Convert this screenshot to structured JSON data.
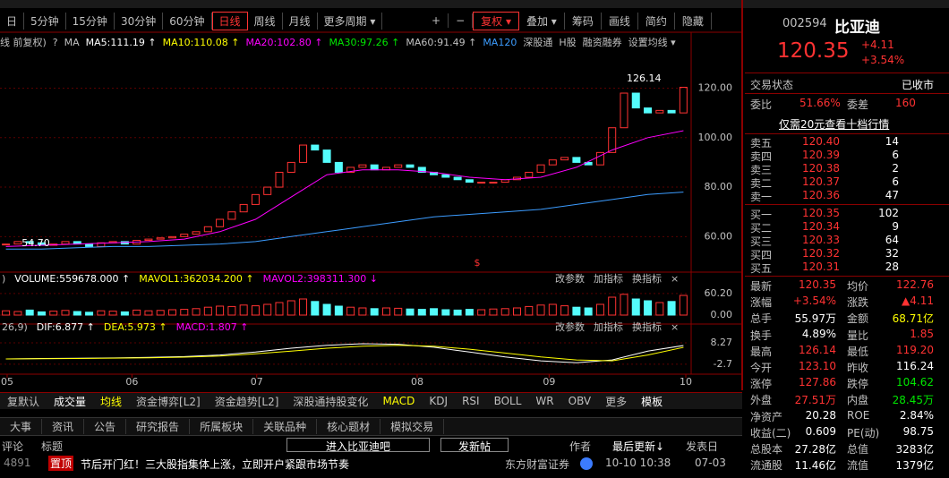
{
  "toolbar": {
    "periods": [
      "日",
      "5分钟",
      "15分钟",
      "30分钟",
      "60分钟",
      "日线",
      "周线",
      "月线",
      "更多周期 ▾"
    ],
    "tools": [
      "+",
      "−",
      "复权 ▾",
      "叠加 ▾",
      "筹码",
      "画线",
      "简约",
      "隐藏"
    ],
    "active": [
      "日线",
      "复权 ▾"
    ]
  },
  "ma_bar": [
    {
      "text": "线 前复权)",
      "color": "#c0c0c0"
    },
    {
      "text": "?",
      "color": "#c0c0c0"
    },
    {
      "text": "MA",
      "color": "#c0c0c0"
    },
    {
      "text": "MA5:111.19 ↑",
      "color": "#ffffff"
    },
    {
      "text": "MA10:110.08 ↑",
      "color": "#ffff00"
    },
    {
      "text": "MA20:102.80 ↑",
      "color": "#ff00ff"
    },
    {
      "text": "MA30:97.26 ↑",
      "color": "#00e600"
    },
    {
      "text": "MA60:91.49 ↑",
      "color": "#c0c0c0"
    },
    {
      "text": "MA120",
      "color": "#3c9cff"
    },
    {
      "text": "深股通",
      "color": "#c0c0c0"
    },
    {
      "text": "H股",
      "color": "#c0c0c0"
    },
    {
      "text": "融资融券",
      "color": "#c0c0c0"
    },
    {
      "text": "设置均线 ▾",
      "color": "#c0c0c0"
    }
  ],
  "chart_data": [
    {
      "type": "candlestick",
      "values": [
        57,
        58,
        57.5,
        56.5,
        57,
        58,
        57,
        56,
        57.5,
        58,
        57,
        58.5,
        59,
        59.5,
        60,
        61,
        62,
        64,
        67,
        70,
        73,
        77,
        80,
        86,
        90,
        97,
        95,
        90,
        86,
        88,
        89,
        87,
        88,
        89,
        88,
        86,
        85,
        84,
        83,
        82,
        82,
        82,
        83,
        84,
        86,
        89,
        91,
        92,
        90,
        89,
        94,
        104,
        118,
        112,
        110,
        111,
        110,
        120.35
      ],
      "xlim": [
        -0.5,
        57.5
      ],
      "ylim": [
        47.1,
        133.2
      ],
      "yticks": [
        {
          "value": 60,
          "label": "60.00"
        },
        {
          "value": 80,
          "label": "80.00"
        },
        {
          "value": 100,
          "label": "100.00"
        },
        {
          "value": 120,
          "label": "120.00"
        }
      ],
      "series": [
        {
          "color": "#ff00ff",
          "x": [
            0,
            3,
            6,
            9,
            12,
            15,
            18,
            21,
            24,
            27,
            30,
            33,
            36,
            39,
            42,
            45,
            48,
            51,
            54,
            57
          ],
          "values": [
            56,
            56.5,
            57,
            57.5,
            58,
            59,
            62,
            67,
            76,
            85,
            87,
            87,
            86,
            84,
            83,
            84,
            88,
            95,
            100,
            102.8
          ]
        },
        {
          "color": "#3c9cff",
          "x": [
            0,
            3,
            6,
            9,
            12,
            15,
            18,
            21,
            24,
            27,
            30,
            33,
            36,
            39,
            42,
            45,
            48,
            51,
            54,
            57
          ],
          "values": [
            55,
            55,
            55.5,
            56,
            56,
            56.5,
            57,
            58,
            60,
            62,
            64,
            66,
            68,
            69,
            70,
            71,
            73,
            75,
            77,
            78
          ]
        }
      ],
      "annotations": [
        {
          "text": "126.14",
          "color": "#ffffff"
        },
        {
          "text": "54.70",
          "color": "#ffffff"
        },
        {
          "text": "$",
          "color": "#ff3232"
        }
      ]
    },
    {
      "type": "bar",
      "values": [
        12,
        10,
        14,
        9,
        11,
        13,
        10,
        8,
        12,
        11,
        9,
        14,
        12,
        13,
        15,
        16,
        18,
        22,
        25,
        24,
        28,
        26,
        30,
        35,
        40,
        45,
        38,
        30,
        25,
        22,
        20,
        18,
        20,
        19,
        17,
        16,
        18,
        15,
        14,
        16,
        15,
        17,
        18,
        20,
        24,
        28,
        30,
        26,
        22,
        20,
        30,
        50,
        58,
        45,
        40,
        35,
        38,
        55
      ],
      "xlim": [
        -0.5,
        57.5
      ],
      "ylim": [
        0,
        85
      ],
      "yticks": [
        {
          "value": 0,
          "label": "0.00"
        },
        {
          "value": 60.2,
          "label": "60.20"
        }
      ],
      "legend": [
        {
          "text": ")",
          "color": "#c0c0c0"
        },
        {
          "text": "VOLUME:559678.000 ↑",
          "color": "#ffffff"
        },
        {
          "text": "MAVOL1:362034.200 ↑",
          "color": "#ffff00"
        },
        {
          "text": "MAVOL2:398311.300 ↓",
          "color": "#ff00ff"
        }
      ],
      "buttons": [
        "改参数",
        "加指标",
        "换指标",
        "×"
      ]
    },
    {
      "type": "line",
      "xlim": [
        -0.5,
        57.5
      ],
      "ylim": [
        -6.9,
        13.3
      ],
      "yticks": [
        -2.7,
        8.27
      ],
      "series": [
        {
          "color": "#ffffff",
          "x": [
            0,
            3,
            6,
            9,
            12,
            15,
            18,
            21,
            24,
            27,
            30,
            33,
            36,
            39,
            42,
            45,
            48,
            51,
            54,
            57
          ],
          "values": [
            0,
            0.2,
            0.3,
            0.5,
            0.8,
            1.2,
            2,
            3.5,
            5.5,
            7,
            7.8,
            7.5,
            6,
            3.5,
            1,
            -1,
            -2,
            -0.5,
            4,
            6.877
          ]
        },
        {
          "color": "#ffff00",
          "x": [
            0,
            3,
            6,
            9,
            12,
            15,
            18,
            21,
            24,
            27,
            30,
            33,
            36,
            39,
            42,
            45,
            48,
            51,
            54,
            57
          ],
          "values": [
            0,
            0.1,
            0.2,
            0.4,
            0.6,
            0.9,
            1.5,
            2.6,
            4,
            5.5,
            6.5,
            7,
            6.5,
            5,
            3,
            1,
            -0.5,
            -1,
            2,
            5.973
          ]
        }
      ],
      "xticks": [
        {
          "value": 0.1,
          "label": "05"
        },
        {
          "value": 10.6,
          "label": "06"
        },
        {
          "value": 21.1,
          "label": "07"
        },
        {
          "value": 34.6,
          "label": "08"
        },
        {
          "value": 45.7,
          "label": "09"
        },
        {
          "value": 57.2,
          "label": "10"
        }
      ],
      "legend": [
        {
          "text": "26,9)",
          "color": "#c0c0c0"
        },
        {
          "text": "DIF:6.877 ↑",
          "color": "#ffffff"
        },
        {
          "text": "DEA:5.973 ↑",
          "color": "#ffff00"
        },
        {
          "text": "MACD:1.807 ↑",
          "color": "#ff00ff"
        }
      ],
      "buttons": [
        "改参数",
        "加指标",
        "换指标",
        "×"
      ]
    }
  ],
  "indicator_tabs": [
    {
      "text": "复默认",
      "color": "#c0c0c0"
    },
    {
      "text": "成交量",
      "color": "#ffffff"
    },
    {
      "text": "均线",
      "color": "#ffff00"
    },
    {
      "text": "资金博弈[L2]",
      "color": "#c0c0c0"
    },
    {
      "text": "资金趋势[L2]",
      "color": "#c0c0c0"
    },
    {
      "text": "深股通持股变化",
      "color": "#c0c0c0"
    },
    {
      "text": "MACD",
      "color": "#ffff00"
    },
    {
      "text": "KDJ",
      "color": "#c0c0c0"
    },
    {
      "text": "RSI",
      "color": "#c0c0c0"
    },
    {
      "text": "BOLL",
      "color": "#c0c0c0"
    },
    {
      "text": "WR",
      "color": "#c0c0c0"
    },
    {
      "text": "OBV",
      "color": "#c0c0c0"
    },
    {
      "text": "更多",
      "color": "#c0c0c0"
    },
    {
      "text": "模板",
      "color": "#ffffff"
    }
  ],
  "info_tabs": [
    "大事",
    "资讯",
    "公告",
    "研究报告",
    "所属板块",
    "关联品种",
    "核心题材",
    "模拟交易"
  ],
  "forum": {
    "header": [
      "评论",
      "标题"
    ],
    "buttons": [
      "进入比亚迪吧",
      "发新帖"
    ],
    "columns": [
      "作者",
      "最后更新↓",
      "发表日"
    ],
    "post": {
      "count": "4891",
      "tag": "置顶",
      "title": "节后开门红！三大股指集体上涨，立即开户紧跟市场节奏",
      "author": "东方财富证券",
      "updated": "10-10 10:38",
      "posted": "07-03"
    }
  },
  "quote": {
    "code": "002594",
    "name": "比亚迪",
    "price": "120.35",
    "change": "+4.11",
    "pct": "+3.54%",
    "status_label": "交易状态",
    "status": "已收市",
    "wb": [
      "委比",
      "51.66%",
      "委差",
      "160"
    ],
    "upgrade": "仅需20元查看十档行情",
    "sell": [
      [
        "卖五",
        "120.40",
        "14"
      ],
      [
        "卖四",
        "120.39",
        "6"
      ],
      [
        "卖三",
        "120.38",
        "2"
      ],
      [
        "卖二",
        "120.37",
        "6"
      ],
      [
        "卖一",
        "120.36",
        "47"
      ]
    ],
    "buy": [
      [
        "买一",
        "120.35",
        "102"
      ],
      [
        "买二",
        "120.34",
        "9"
      ],
      [
        "买三",
        "120.33",
        "64"
      ],
      [
        "买四",
        "120.32",
        "32"
      ],
      [
        "买五",
        "120.31",
        "28"
      ]
    ],
    "stats": [
      {
        "cells": [
          "最新",
          "120.35",
          "均价",
          "122.76"
        ],
        "colors": [
          "#ff3232",
          "#ff3232"
        ]
      },
      {
        "cells": [
          "涨幅",
          "+3.54%",
          "涨跌",
          "▲4.11"
        ],
        "colors": [
          "#ff3232",
          "#ff3232"
        ]
      },
      {
        "cells": [
          "总手",
          "55.97万",
          "金额",
          "68.71亿"
        ],
        "colors": [
          "#ffffff",
          "#ffff00"
        ]
      },
      {
        "cells": [
          "换手",
          "4.89%",
          "量比",
          "1.85"
        ],
        "colors": [
          "#ffffff",
          "#ff3232"
        ]
      },
      {
        "cells": [
          "最高",
          "126.14",
          "最低",
          "119.20"
        ],
        "colors": [
          "#ff3232",
          "#ff3232"
        ]
      },
      {
        "cells": [
          "今开",
          "123.10",
          "昨收",
          "116.24"
        ],
        "colors": [
          "#ff3232",
          "#ffffff"
        ]
      },
      {
        "cells": [
          "涨停",
          "127.86",
          "跌停",
          "104.62"
        ],
        "colors": [
          "#ff3232",
          "#00e600"
        ]
      },
      {
        "cells": [
          "外盘",
          "27.51万",
          "内盘",
          "28.45万"
        ],
        "colors": [
          "#ff3232",
          "#00e600"
        ]
      },
      {
        "cells": [
          "净资产",
          "20.28",
          "ROE",
          "2.84%"
        ],
        "colors": [
          "#ffffff",
          "#ffffff"
        ]
      },
      {
        "cells": [
          "收益(二)",
          "0.609",
          "PE(动)",
          "98.75"
        ],
        "colors": [
          "#ffffff",
          "#ffffff"
        ]
      },
      {
        "cells": [
          "总股本",
          "27.28亿",
          "总值",
          "3283亿"
        ],
        "colors": [
          "#ffffff",
          "#ffffff"
        ]
      },
      {
        "cells": [
          "流通股",
          "11.46亿",
          "流值",
          "1379亿"
        ],
        "colors": [
          "#ffffff",
          "#ffffff"
        ]
      }
    ]
  }
}
